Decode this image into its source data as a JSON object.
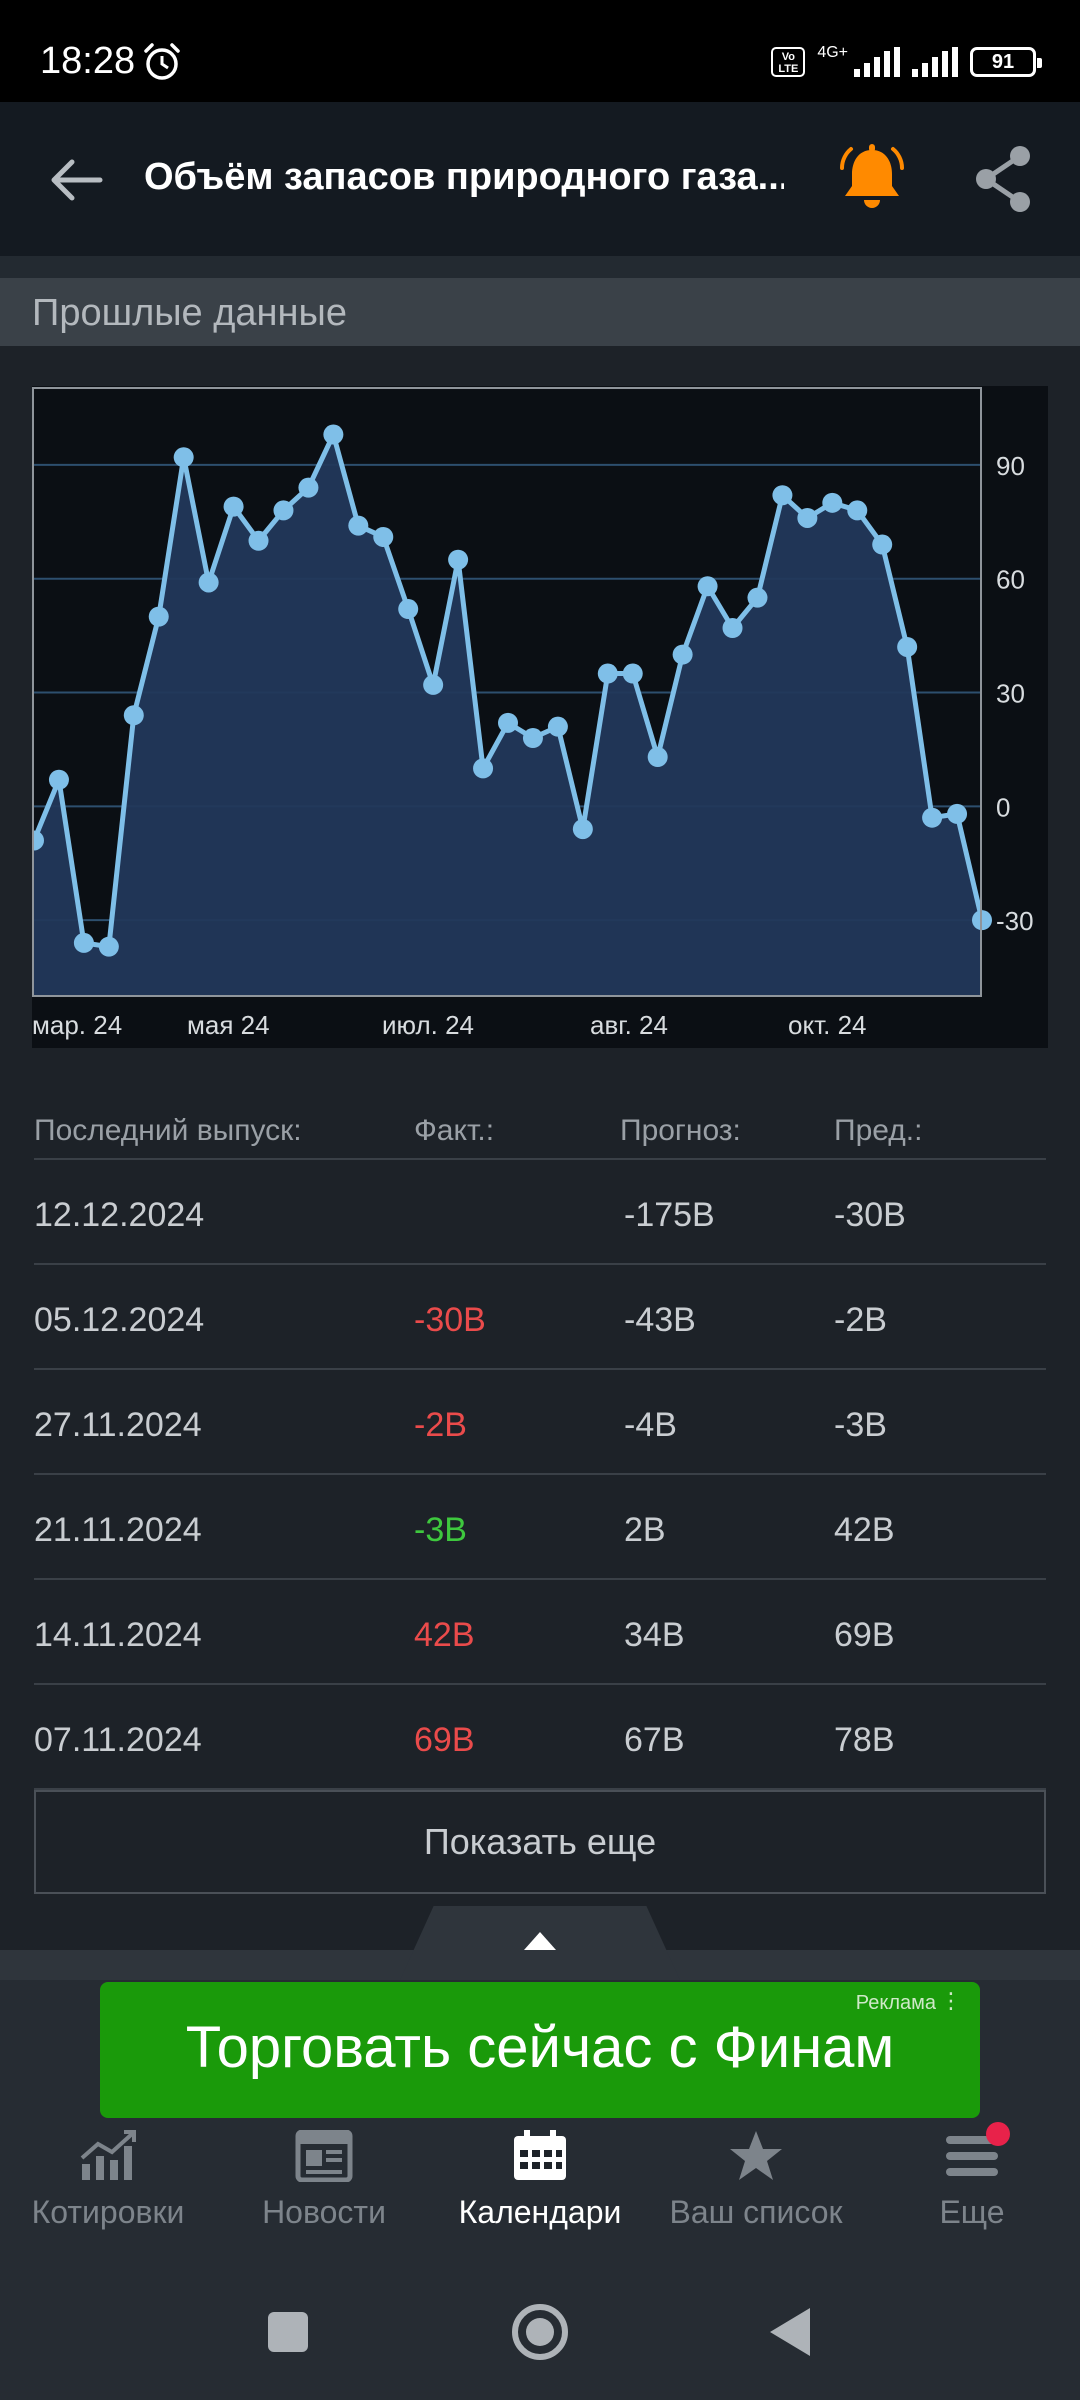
{
  "status_bar": {
    "time": "18:28",
    "network": "4G+",
    "volte": "Vo LTE",
    "battery": "91"
  },
  "app_bar": {
    "title": "Объём запасов природного газа..."
  },
  "section": {
    "title": "Прошлые данные"
  },
  "chart_data": {
    "type": "area",
    "x_ticks": [
      "мар. 24",
      "мая 24",
      "июл. 24",
      "авг. 24",
      "окт. 24"
    ],
    "y_ticks": [
      "90",
      "60",
      "30",
      "0",
      "-30"
    ],
    "ylim": [
      -50,
      110
    ],
    "grid": true,
    "series": [
      {
        "values": [
          -9,
          7,
          -36,
          -37,
          24,
          50,
          92,
          59,
          79,
          70,
          78,
          84,
          98,
          74,
          71,
          52,
          32,
          65,
          10,
          22,
          18,
          21,
          -6,
          35,
          35,
          13,
          40,
          58,
          47,
          55,
          82,
          76,
          80,
          78,
          69,
          42,
          -3,
          -2,
          -30
        ]
      }
    ],
    "colors": {
      "line": "#7fbfe8",
      "fill": "#22385a",
      "grid": "#2d4f6e"
    }
  },
  "table": {
    "headers": {
      "date": "Последний выпуск:",
      "actual": "Факт.:",
      "forecast": "Прогноз:",
      "previous": "Пред.:"
    },
    "rows": [
      {
        "date": "12.12.2024",
        "actual": "",
        "actual_color": "none",
        "forecast": "-175B",
        "previous": "-30B"
      },
      {
        "date": "05.12.2024",
        "actual": "-30B",
        "actual_color": "red",
        "forecast": "-43B",
        "previous": "-2B"
      },
      {
        "date": "27.11.2024",
        "actual": "-2B",
        "actual_color": "red",
        "forecast": "-4B",
        "previous": "-3B"
      },
      {
        "date": "21.11.2024",
        "actual": "-3B",
        "actual_color": "green",
        "forecast": "2B",
        "previous": "42B"
      },
      {
        "date": "14.11.2024",
        "actual": "42B",
        "actual_color": "red",
        "forecast": "34B",
        "previous": "69B"
      },
      {
        "date": "07.11.2024",
        "actual": "69B",
        "actual_color": "red",
        "forecast": "67B",
        "previous": "78B"
      }
    ],
    "more_button": "Показать еще"
  },
  "ad": {
    "label": "Реклама",
    "text": "Торговать сейчас с Финам"
  },
  "bottom_nav": {
    "items": [
      {
        "label": "Котировки",
        "icon": "chart-icon"
      },
      {
        "label": "Новости",
        "icon": "news-icon"
      },
      {
        "label": "Календари",
        "icon": "calendar-icon"
      },
      {
        "label": "Ваш список",
        "icon": "star-icon"
      },
      {
        "label": "Еще",
        "icon": "menu-icon"
      }
    ],
    "active_index": 2
  }
}
